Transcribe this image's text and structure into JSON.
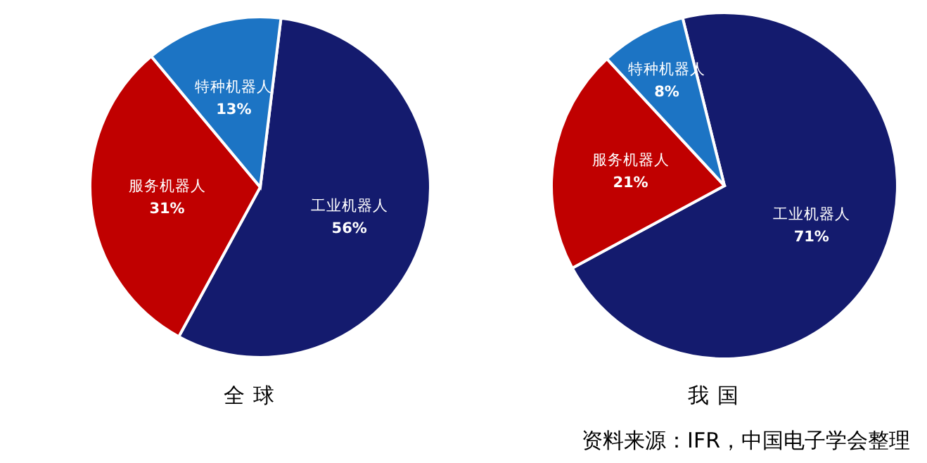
{
  "chart_data": [
    {
      "type": "pie",
      "title": "全球",
      "categories": [
        "工业机器人",
        "服务机器人",
        "特种机器人"
      ],
      "values": [
        56,
        31,
        13
      ],
      "value_labels": [
        "56%",
        "31%",
        "13%"
      ],
      "colors": [
        "#141b6e",
        "#c00000",
        "#1c74c4"
      ]
    },
    {
      "type": "pie",
      "title": "我国",
      "categories": [
        "工业机器人",
        "服务机器人",
        "特种机器人"
      ],
      "values": [
        71,
        21,
        8
      ],
      "value_labels": [
        "71%",
        "21%",
        "8%"
      ],
      "colors": [
        "#141b6e",
        "#c00000",
        "#1c74c4"
      ],
      "annotations": [
        "资料来源：IFR，中国电子学会整理"
      ]
    }
  ]
}
